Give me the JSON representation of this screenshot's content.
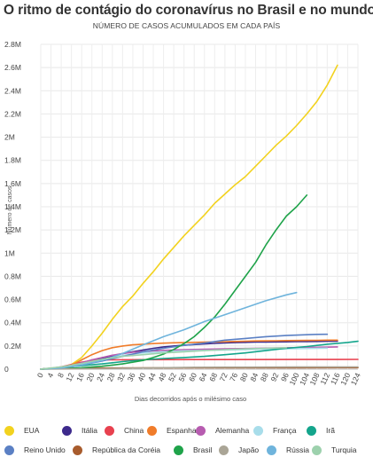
{
  "header": {
    "title": "O ritmo de contágio do coronavírus no Brasil e no mundo",
    "subtitle": "NÚMERO DE CASOS ACUMULADOS EM CADA PAÍS"
  },
  "chart_data": {
    "type": "line",
    "xlabel": "Dias decorridos após o milésimo caso",
    "ylabel": "Número de casos",
    "xlim": [
      0,
      124
    ],
    "ylim": [
      0,
      2800000
    ],
    "x_ticks": [
      0,
      4,
      8,
      12,
      16,
      20,
      24,
      28,
      32,
      36,
      40,
      44,
      48,
      52,
      56,
      60,
      64,
      68,
      72,
      76,
      80,
      84,
      88,
      92,
      96,
      100,
      104,
      108,
      112,
      116,
      120,
      124
    ],
    "y_ticks": [
      0,
      200000,
      400000,
      600000,
      800000,
      1000000,
      1200000,
      1400000,
      1600000,
      1800000,
      2000000,
      2200000,
      2400000,
      2600000,
      2800000
    ],
    "y_tick_labels": [
      "0",
      "0.2M",
      "0.4M",
      "0.6M",
      "0.8M",
      "1M",
      "1.2M",
      "1.4M",
      "1.6M",
      "1.8M",
      "2M",
      "2.2M",
      "2.4M",
      "2.6M",
      "2.8M"
    ],
    "grid": true,
    "legend_position": "bottom",
    "series": [
      {
        "name": "EUA",
        "color": "#f2d21f",
        "x": [
          0,
          8,
          12,
          16,
          20,
          24,
          28,
          32,
          36,
          40,
          44,
          48,
          52,
          56,
          60,
          64,
          68,
          72,
          76,
          80,
          84,
          88,
          92,
          96,
          100,
          104,
          108,
          112,
          116
        ],
        "values": [
          1000,
          15000,
          40000,
          100000,
          200000,
          310000,
          430000,
          540000,
          630000,
          740000,
          840000,
          950000,
          1050000,
          1150000,
          1240000,
          1330000,
          1430000,
          1510000,
          1590000,
          1660000,
          1750000,
          1840000,
          1930000,
          2010000,
          2100000,
          2200000,
          2310000,
          2450000,
          2620000
        ]
      },
      {
        "name": "Itália",
        "color": "#3d2a8c",
        "x": [
          0,
          8,
          12,
          16,
          20,
          24,
          28,
          32,
          36,
          40,
          44,
          48,
          52,
          56,
          60,
          64,
          68,
          72,
          76,
          80,
          84,
          88,
          92,
          96,
          100,
          104,
          108,
          112,
          116
        ],
        "values": [
          1000,
          10000,
          20000,
          40000,
          70000,
          95000,
          115000,
          135000,
          150000,
          165000,
          180000,
          192000,
          200000,
          207000,
          212000,
          217000,
          222000,
          226000,
          229000,
          231000,
          233000,
          234000,
          235000,
          236000,
          237000,
          238000,
          239000,
          240000,
          241000
        ]
      },
      {
        "name": "China",
        "color": "#e8414f",
        "x": [
          0,
          4,
          8,
          12,
          16,
          20,
          24,
          28,
          32,
          40,
          60,
          80,
          100,
          124
        ],
        "values": [
          1000,
          7000,
          20000,
          40000,
          60000,
          74000,
          79000,
          80500,
          81000,
          81500,
          82500,
          83000,
          83500,
          83800
        ]
      },
      {
        "name": "Espanha",
        "color": "#f07c2a",
        "x": [
          0,
          8,
          12,
          16,
          20,
          24,
          28,
          32,
          36,
          40,
          44,
          48,
          52,
          56,
          60,
          64,
          68,
          72,
          76,
          80,
          84,
          88,
          92,
          96,
          100,
          104,
          108,
          112,
          116
        ],
        "values": [
          1000,
          9000,
          33000,
          80000,
          125000,
          160000,
          185000,
          200000,
          210000,
          215000,
          220000,
          224000,
          227000,
          229000,
          231000,
          233000,
          235000,
          237000,
          239000,
          241000,
          243000,
          244000,
          245000,
          246000,
          247000,
          248000,
          249000,
          250000,
          250500
        ]
      },
      {
        "name": "Alemanha",
        "color": "#b75cb0",
        "x": [
          0,
          8,
          12,
          16,
          20,
          24,
          28,
          32,
          36,
          40,
          48,
          56,
          64,
          72,
          80,
          88,
          96,
          104,
          112,
          116
        ],
        "values": [
          1000,
          15000,
          30000,
          55000,
          80000,
          100000,
          120000,
          135000,
          145000,
          152000,
          162000,
          168000,
          172000,
          175000,
          178000,
          181000,
          184000,
          187000,
          190000,
          192000
        ]
      },
      {
        "name": "França",
        "color": "#a8ddea",
        "x": [
          0,
          8,
          12,
          16,
          20,
          24,
          28,
          32,
          36,
          40,
          48,
          56,
          64,
          72,
          80,
          88,
          96,
          104,
          112
        ],
        "values": [
          1000,
          8000,
          20000,
          40000,
          60000,
          80000,
          100000,
          118000,
          130000,
          140000,
          150000,
          158000,
          162000,
          165000,
          168000,
          172000,
          175000,
          178000,
          181000
        ]
      },
      {
        "name": "Irã",
        "color": "#14a58c",
        "x": [
          0,
          8,
          16,
          24,
          32,
          40,
          48,
          56,
          64,
          72,
          80,
          88,
          96,
          104,
          112,
          120,
          124
        ],
        "values": [
          1000,
          14000,
          30000,
          45000,
          65000,
          80000,
          92000,
          100000,
          110000,
          125000,
          140000,
          160000,
          180000,
          195000,
          215000,
          230000,
          240000
        ]
      },
      {
        "name": "Reino Unido",
        "color": "#5b80c4",
        "x": [
          0,
          8,
          16,
          24,
          32,
          40,
          48,
          56,
          64,
          72,
          80,
          88,
          96,
          104,
          108,
          112
        ],
        "values": [
          1000,
          10000,
          35000,
          70000,
          110000,
          150000,
          180000,
          205000,
          225000,
          250000,
          265000,
          280000,
          290000,
          297000,
          300000,
          301000
        ]
      },
      {
        "name": "República da Coréia",
        "color": "#a85c2d",
        "x": [
          0,
          4,
          8,
          12,
          16,
          20,
          28,
          40,
          60,
          80,
          100,
          124
        ],
        "values": [
          1000,
          5000,
          7500,
          8500,
          9000,
          9600,
          10200,
          10700,
          11200,
          11700,
          12200,
          12700
        ]
      },
      {
        "name": "Brasil",
        "color": "#1fa34a",
        "x": [
          0,
          8,
          16,
          24,
          32,
          40,
          44,
          48,
          52,
          56,
          60,
          64,
          68,
          72,
          76,
          80,
          84,
          88,
          92,
          96,
          100,
          104
        ],
        "values": [
          1000,
          4000,
          12000,
          25000,
          45000,
          75000,
          100000,
          130000,
          170000,
          220000,
          280000,
          360000,
          450000,
          560000,
          680000,
          800000,
          920000,
          1070000,
          1200000,
          1320000,
          1400000,
          1500000
        ]
      },
      {
        "name": "Japão",
        "color": "#aaa596",
        "x": [
          0,
          20,
          40,
          60,
          80,
          100,
          124
        ],
        "values": [
          1000,
          3000,
          10000,
          16000,
          17000,
          18000,
          19000
        ]
      },
      {
        "name": "Rússia",
        "color": "#6fb4dc",
        "x": [
          0,
          8,
          16,
          24,
          32,
          40,
          48,
          56,
          64,
          72,
          80,
          88,
          96,
          100
        ],
        "values": [
          1000,
          10000,
          36000,
          75000,
          135000,
          210000,
          280000,
          340000,
          410000,
          470000,
          530000,
          590000,
          640000,
          660000
        ]
      },
      {
        "name": "Turquia",
        "color": "#9dd1ad",
        "x": [
          0,
          8,
          16,
          24,
          32,
          40,
          48,
          56,
          64,
          72,
          80,
          88,
          96
        ],
        "values": [
          1000,
          20000,
          50000,
          85000,
          110000,
          125000,
          140000,
          150000,
          160000,
          168000,
          175000,
          180000,
          185000
        ]
      }
    ]
  }
}
